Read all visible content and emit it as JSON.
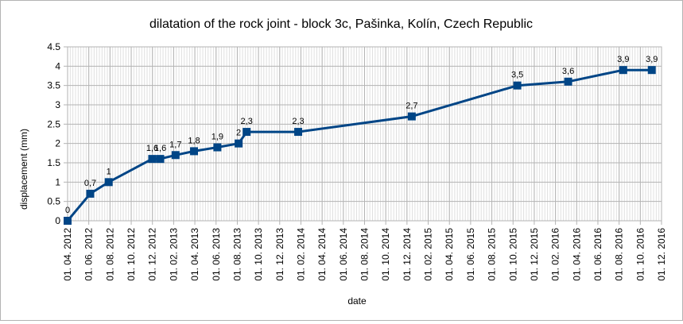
{
  "chart_data": {
    "type": "line",
    "title": "dilatation of the rock joint - block 3c, Pašinka, Kolín, Czech Republic",
    "xlabel": "date",
    "ylabel": "displacement (mm)",
    "ylim": [
      0,
      4.5
    ],
    "y_ticks": [
      "0",
      "0.5",
      "1",
      "1.5",
      "2",
      "2.5",
      "3",
      "3.5",
      "4",
      "4.5"
    ],
    "xlim": [
      "2012-04-01",
      "2016-12-01"
    ],
    "x_ticks": [
      "01. 04. 2012",
      "01. 06. 2012",
      "01. 08. 2012",
      "01. 10. 2012",
      "01. 12. 2012",
      "01. 02. 2013",
      "01. 04. 2013",
      "01. 06. 2013",
      "01. 08. 2013",
      "01. 10. 2013",
      "01. 12. 2013",
      "01. 02. 2014",
      "01. 04. 2014",
      "01. 06. 2014",
      "01. 08. 2014",
      "01. 10. 2014",
      "01. 12. 2014",
      "01. 02. 2015",
      "01. 04. 2015",
      "01. 06. 2015",
      "01. 08. 2015",
      "01. 10. 2015",
      "01. 12. 2015",
      "01. 02. 2016",
      "01. 04. 2016",
      "01. 06. 2016",
      "01. 08. 2016",
      "01. 10. 2016",
      "01. 12. 2016"
    ],
    "grid": true,
    "legend": false,
    "color": "#004586",
    "points": [
      {
        "x": "2012-04-01",
        "y": 0,
        "label": "0"
      },
      {
        "x": "2012-06-05",
        "y": 0.7,
        "label": "0,7"
      },
      {
        "x": "2012-07-28",
        "y": 1,
        "label": "1"
      },
      {
        "x": "2012-11-30",
        "y": 1.6,
        "label": "1,6"
      },
      {
        "x": "2012-12-23",
        "y": 1.6,
        "label": "1,6"
      },
      {
        "x": "2013-02-05",
        "y": 1.7,
        "label": "1,7"
      },
      {
        "x": "2013-03-30",
        "y": 1.8,
        "label": "1,8"
      },
      {
        "x": "2013-06-05",
        "y": 1.9,
        "label": "1,9"
      },
      {
        "x": "2013-08-05",
        "y": 2,
        "label": "2"
      },
      {
        "x": "2013-08-28",
        "y": 2.3,
        "label": "2,3"
      },
      {
        "x": "2014-01-23",
        "y": 2.3,
        "label": "2,3"
      },
      {
        "x": "2014-12-15",
        "y": 2.7,
        "label": "2,7"
      },
      {
        "x": "2015-10-14",
        "y": 3.5,
        "label": "3,5"
      },
      {
        "x": "2016-03-08",
        "y": 3.6,
        "label": "3,6"
      },
      {
        "x": "2016-08-13",
        "y": 3.9,
        "label": "3,9"
      },
      {
        "x": "2016-11-03",
        "y": 3.9,
        "label": "3,9"
      }
    ]
  }
}
